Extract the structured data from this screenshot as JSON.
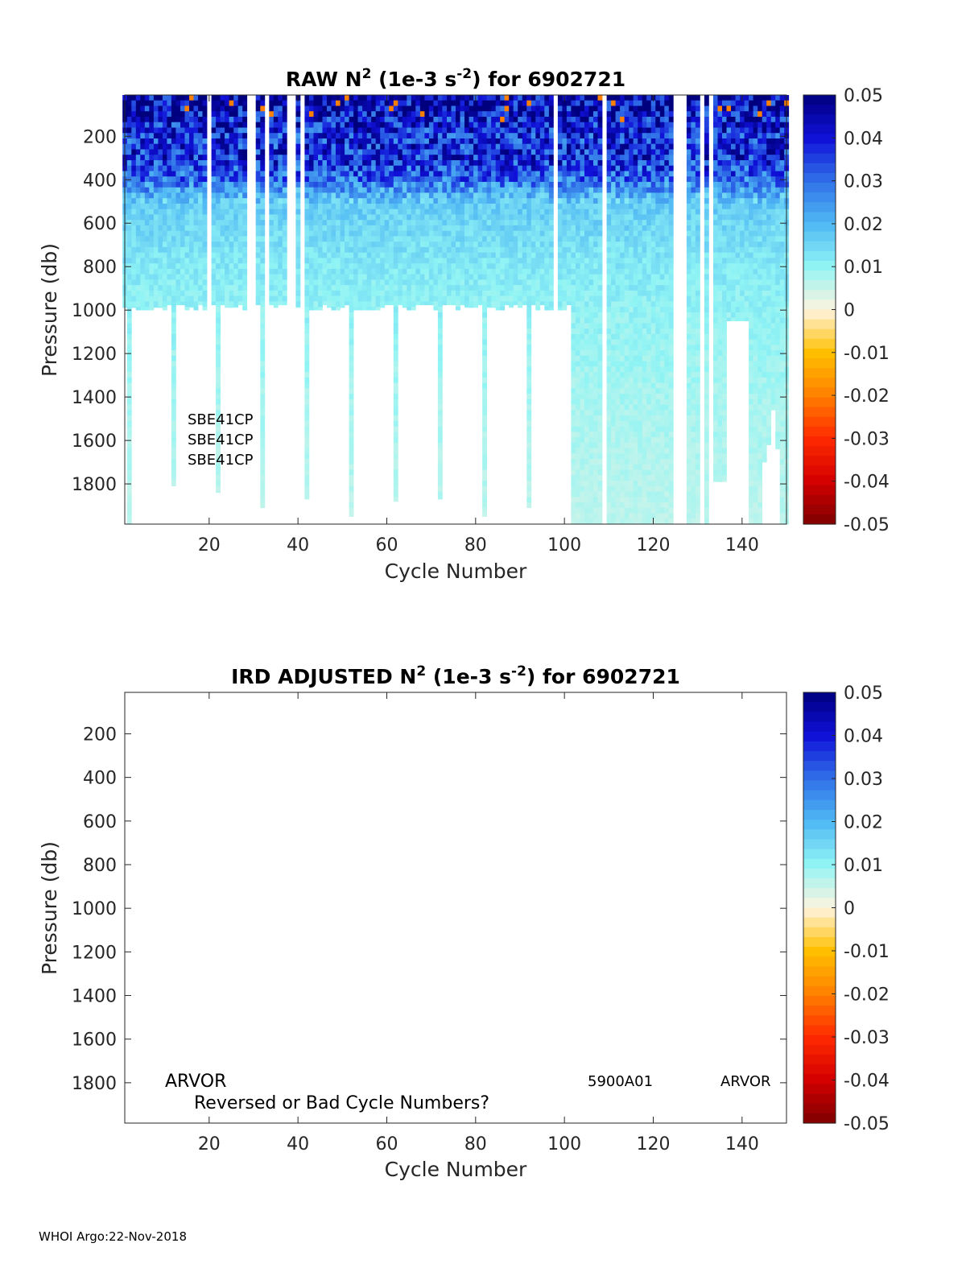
{
  "chart_data": [
    {
      "type": "heatmap",
      "title_prefix": "RAW N",
      "title_sup1": "2",
      "title_mid": " (1e-3 s",
      "title_sup2": "-2",
      "title_suffix": ") for 6902721",
      "xlabel": "Cycle Number",
      "ylabel": "Pressure (db)",
      "xlim": [
        1,
        150
      ],
      "ylim": [
        10,
        1985
      ],
      "xticks": [
        "20",
        "40",
        "60",
        "80",
        "100",
        "120",
        "140"
      ],
      "yticks": [
        "200",
        "400",
        "600",
        "800",
        "1000",
        "1200",
        "1400",
        "1600",
        "1800"
      ],
      "clim": [
        -0.05,
        0.05
      ],
      "colorbar_ticks": [
        "0.05",
        "0.04",
        "0.03",
        "0.02",
        "0.01",
        "0",
        "-0.01",
        "-0.02",
        "-0.03",
        "-0.04",
        "-0.05"
      ],
      "annotations": [
        "SBE41CP",
        "SBE41CP",
        "SBE41CP"
      ],
      "missing_cycles": [
        20,
        29,
        30,
        33,
        38,
        39,
        41,
        98,
        109,
        125,
        126,
        127,
        131,
        133
      ],
      "shallow_profile_max_pressure": 1000,
      "deep_cycles": [
        [
          2,
          1985
        ],
        [
          12,
          1810
        ],
        [
          22,
          1840
        ],
        [
          32,
          1910
        ],
        [
          42,
          1870
        ],
        [
          52,
          1950
        ],
        [
          62,
          1880
        ],
        [
          72,
          1870
        ],
        [
          82,
          1950
        ],
        [
          92,
          1910
        ]
      ],
      "full_depth_from_cycle": 102,
      "partial_deep_cycles": [
        [
          134,
          1790
        ],
        [
          135,
          1790
        ],
        [
          136,
          1790
        ],
        [
          137,
          1050
        ],
        [
          138,
          1050
        ],
        [
          139,
          1050
        ],
        [
          140,
          1050
        ],
        [
          141,
          1050
        ],
        [
          145,
          1700
        ],
        [
          146,
          1620
        ],
        [
          147,
          1460
        ],
        [
          148,
          1640
        ]
      ],
      "mean_profile": {
        "pressure": [
          10,
          100,
          200,
          300,
          400,
          500,
          600,
          800,
          1000,
          1400,
          1985
        ],
        "n2": [
          0.048,
          0.042,
          0.036,
          0.038,
          0.03,
          0.017,
          0.015,
          0.012,
          0.01,
          0.008,
          0.006
        ]
      }
    },
    {
      "type": "heatmap",
      "title_prefix": "IRD  ADJUSTED N",
      "title_sup1": "2",
      "title_mid": " (1e-3 s",
      "title_sup2": "-2",
      "title_suffix": ") for 6902721",
      "xlabel": "Cycle Number",
      "ylabel": "Pressure (db)",
      "xlim": [
        1,
        150
      ],
      "ylim": [
        10,
        1985
      ],
      "xticks": [
        "20",
        "40",
        "60",
        "80",
        "100",
        "120",
        "140"
      ],
      "yticks": [
        "200",
        "400",
        "600",
        "800",
        "1000",
        "1200",
        "1400",
        "1600",
        "1800"
      ],
      "clim": [
        -0.05,
        0.05
      ],
      "colorbar_ticks": [
        "0.05",
        "0.04",
        "0.03",
        "0.02",
        "0.01",
        "0",
        "-0.01",
        "-0.02",
        "-0.03",
        "-0.04",
        "-0.05"
      ],
      "annotations": [
        "ARVOR",
        "Reversed or Bad Cycle Numbers?",
        "5900A01",
        "ARVOR"
      ]
    }
  ],
  "footer": "WHOI Argo:22-Nov-2018",
  "colormap": [
    "#7f0000",
    "#d40000",
    "#ff2a00",
    "#ff8000",
    "#ffc000",
    "#fff4e0",
    "#90f4f4",
    "#50b8f4",
    "#3070e8",
    "#1010d8",
    "#00007f"
  ]
}
